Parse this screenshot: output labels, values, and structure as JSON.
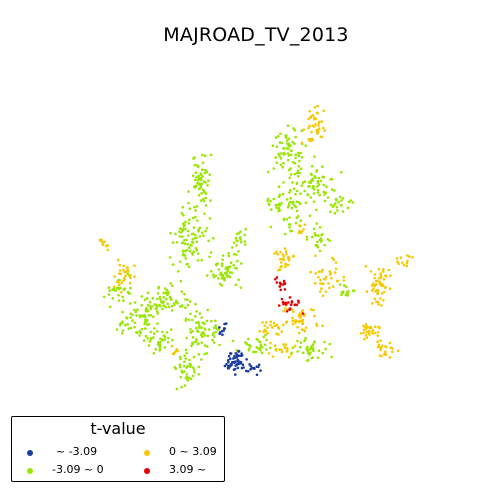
{
  "title": "MAJROAD_TV_2013",
  "legend": {
    "title": "t-value",
    "items": [
      {
        "label": "~ -3.09",
        "color": "#1a3d9e"
      },
      {
        "label": "-3.09 ~ 0",
        "color": "#99e600"
      },
      {
        "label": "0 ~ 3.09",
        "color": "#f5c800"
      },
      {
        "label": "3.09 ~",
        "color": "#e60000"
      }
    ]
  }
}
